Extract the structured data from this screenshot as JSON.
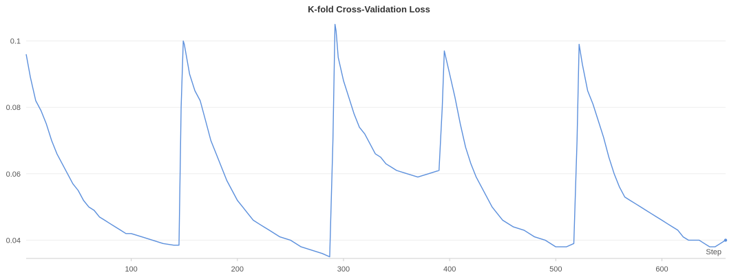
{
  "chart_data": {
    "type": "line",
    "title": "K-fold Cross-Validation Loss",
    "xlabel": "Step",
    "ylabel": "",
    "xlim": [
      1,
      660
    ],
    "ylim": [
      0.0345,
      0.1055
    ],
    "x_ticks": [
      100,
      200,
      300,
      400,
      500,
      600
    ],
    "y_ticks": [
      0.04,
      0.06,
      0.08,
      0.1
    ],
    "x_tick_labels": [
      "100",
      "200",
      "300",
      "400",
      "500",
      "600"
    ],
    "y_tick_labels": [
      "0.04",
      "0.06",
      "0.08",
      "0.1"
    ],
    "grid": true,
    "legend": "none",
    "series": [
      {
        "color": "#5b8fdc",
        "points": [
          [
            1,
            0.096
          ],
          [
            5,
            0.089
          ],
          [
            10,
            0.082
          ],
          [
            15,
            0.079
          ],
          [
            20,
            0.075
          ],
          [
            25,
            0.07
          ],
          [
            30,
            0.066
          ],
          [
            35,
            0.063
          ],
          [
            40,
            0.06
          ],
          [
            45,
            0.057
          ],
          [
            50,
            0.055
          ],
          [
            55,
            0.052
          ],
          [
            60,
            0.05
          ],
          [
            65,
            0.049
          ],
          [
            70,
            0.047
          ],
          [
            75,
            0.046
          ],
          [
            80,
            0.045
          ],
          [
            85,
            0.044
          ],
          [
            90,
            0.043
          ],
          [
            95,
            0.042
          ],
          [
            100,
            0.042
          ],
          [
            110,
            0.041
          ],
          [
            120,
            0.04
          ],
          [
            130,
            0.039
          ],
          [
            140,
            0.0385
          ],
          [
            145,
            0.0385
          ],
          [
            147,
            0.08
          ],
          [
            149,
            0.1
          ],
          [
            150,
            0.099
          ],
          [
            155,
            0.09
          ],
          [
            160,
            0.085
          ],
          [
            165,
            0.082
          ],
          [
            170,
            0.076
          ],
          [
            175,
            0.07
          ],
          [
            180,
            0.066
          ],
          [
            185,
            0.062
          ],
          [
            190,
            0.058
          ],
          [
            195,
            0.055
          ],
          [
            200,
            0.052
          ],
          [
            205,
            0.05
          ],
          [
            210,
            0.048
          ],
          [
            215,
            0.046
          ],
          [
            220,
            0.045
          ],
          [
            225,
            0.044
          ],
          [
            230,
            0.043
          ],
          [
            240,
            0.041
          ],
          [
            250,
            0.04
          ],
          [
            260,
            0.038
          ],
          [
            270,
            0.037
          ],
          [
            280,
            0.036
          ],
          [
            287,
            0.035
          ],
          [
            290,
            0.07
          ],
          [
            292,
            0.105
          ],
          [
            293,
            0.103
          ],
          [
            295,
            0.095
          ],
          [
            300,
            0.088
          ],
          [
            305,
            0.083
          ],
          [
            310,
            0.078
          ],
          [
            315,
            0.074
          ],
          [
            320,
            0.072
          ],
          [
            325,
            0.069
          ],
          [
            330,
            0.066
          ],
          [
            335,
            0.065
          ],
          [
            340,
            0.063
          ],
          [
            345,
            0.062
          ],
          [
            350,
            0.061
          ],
          [
            360,
            0.06
          ],
          [
            370,
            0.059
          ],
          [
            380,
            0.06
          ],
          [
            390,
            0.061
          ],
          [
            393,
            0.08
          ],
          [
            395,
            0.097
          ],
          [
            400,
            0.09
          ],
          [
            405,
            0.083
          ],
          [
            410,
            0.075
          ],
          [
            415,
            0.068
          ],
          [
            420,
            0.063
          ],
          [
            425,
            0.059
          ],
          [
            430,
            0.056
          ],
          [
            435,
            0.053
          ],
          [
            440,
            0.05
          ],
          [
            445,
            0.048
          ],
          [
            450,
            0.046
          ],
          [
            460,
            0.044
          ],
          [
            470,
            0.043
          ],
          [
            480,
            0.041
          ],
          [
            490,
            0.04
          ],
          [
            500,
            0.038
          ],
          [
            510,
            0.038
          ],
          [
            517,
            0.039
          ],
          [
            520,
            0.07
          ],
          [
            522,
            0.099
          ],
          [
            525,
            0.093
          ],
          [
            530,
            0.085
          ],
          [
            535,
            0.081
          ],
          [
            540,
            0.076
          ],
          [
            545,
            0.071
          ],
          [
            550,
            0.065
          ],
          [
            555,
            0.06
          ],
          [
            560,
            0.056
          ],
          [
            565,
            0.053
          ],
          [
            570,
            0.052
          ],
          [
            575,
            0.051
          ],
          [
            580,
            0.05
          ],
          [
            585,
            0.049
          ],
          [
            590,
            0.048
          ],
          [
            595,
            0.047
          ],
          [
            600,
            0.046
          ],
          [
            605,
            0.045
          ],
          [
            610,
            0.044
          ],
          [
            615,
            0.043
          ],
          [
            620,
            0.041
          ],
          [
            625,
            0.04
          ],
          [
            630,
            0.04
          ],
          [
            635,
            0.04
          ],
          [
            640,
            0.039
          ],
          [
            645,
            0.038
          ],
          [
            650,
            0.038
          ],
          [
            655,
            0.039
          ],
          [
            660,
            0.04
          ]
        ]
      }
    ]
  }
}
